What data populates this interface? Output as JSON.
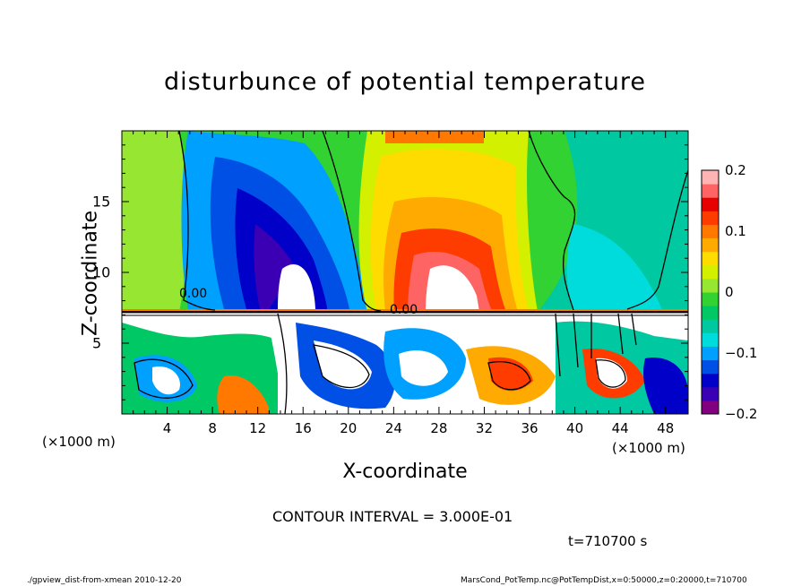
{
  "chart_data": {
    "type": "heatmap",
    "title": "disturbunce of potential temperature",
    "xlabel": "X-coordinate",
    "ylabel": "Z-coordinate",
    "x_unit": "(×1000 m)",
    "xlim": [
      0,
      50
    ],
    "ylim": [
      0,
      20
    ],
    "x_ticks": [
      "4",
      "8",
      "12",
      "16",
      "20",
      "24",
      "28",
      "32",
      "36",
      "40",
      "44",
      "48"
    ],
    "y_ticks": [
      "5",
      "10",
      "15"
    ],
    "colorbar": {
      "range": [
        -0.2,
        0.2
      ],
      "ticks": [
        "0.2",
        "0.1",
        "0",
        "−0.1",
        "−0.2"
      ],
      "colors": [
        "#800080",
        "#3c00b4",
        "#0000c8",
        "#0050e6",
        "#00a0ff",
        "#00dcdc",
        "#00c8a0",
        "#00c864",
        "#32d232",
        "#96e632",
        "#d2f000",
        "#ffdc00",
        "#ffaa00",
        "#ff7800",
        "#ff3c00",
        "#e60000",
        "#ff6464",
        "#ffb4b4"
      ]
    },
    "contour_label": "0.00",
    "contour_interval": "CONTOUR INTERVAL = 3.000E-01",
    "time": "t=710700 s",
    "footer_left": "./gpview_dist-from-xmean  2010-12-20",
    "footer_right": "MarsCond_PotTemp.nc@PotTempDist,x=0:50000,z=0:20000,t=710700"
  }
}
